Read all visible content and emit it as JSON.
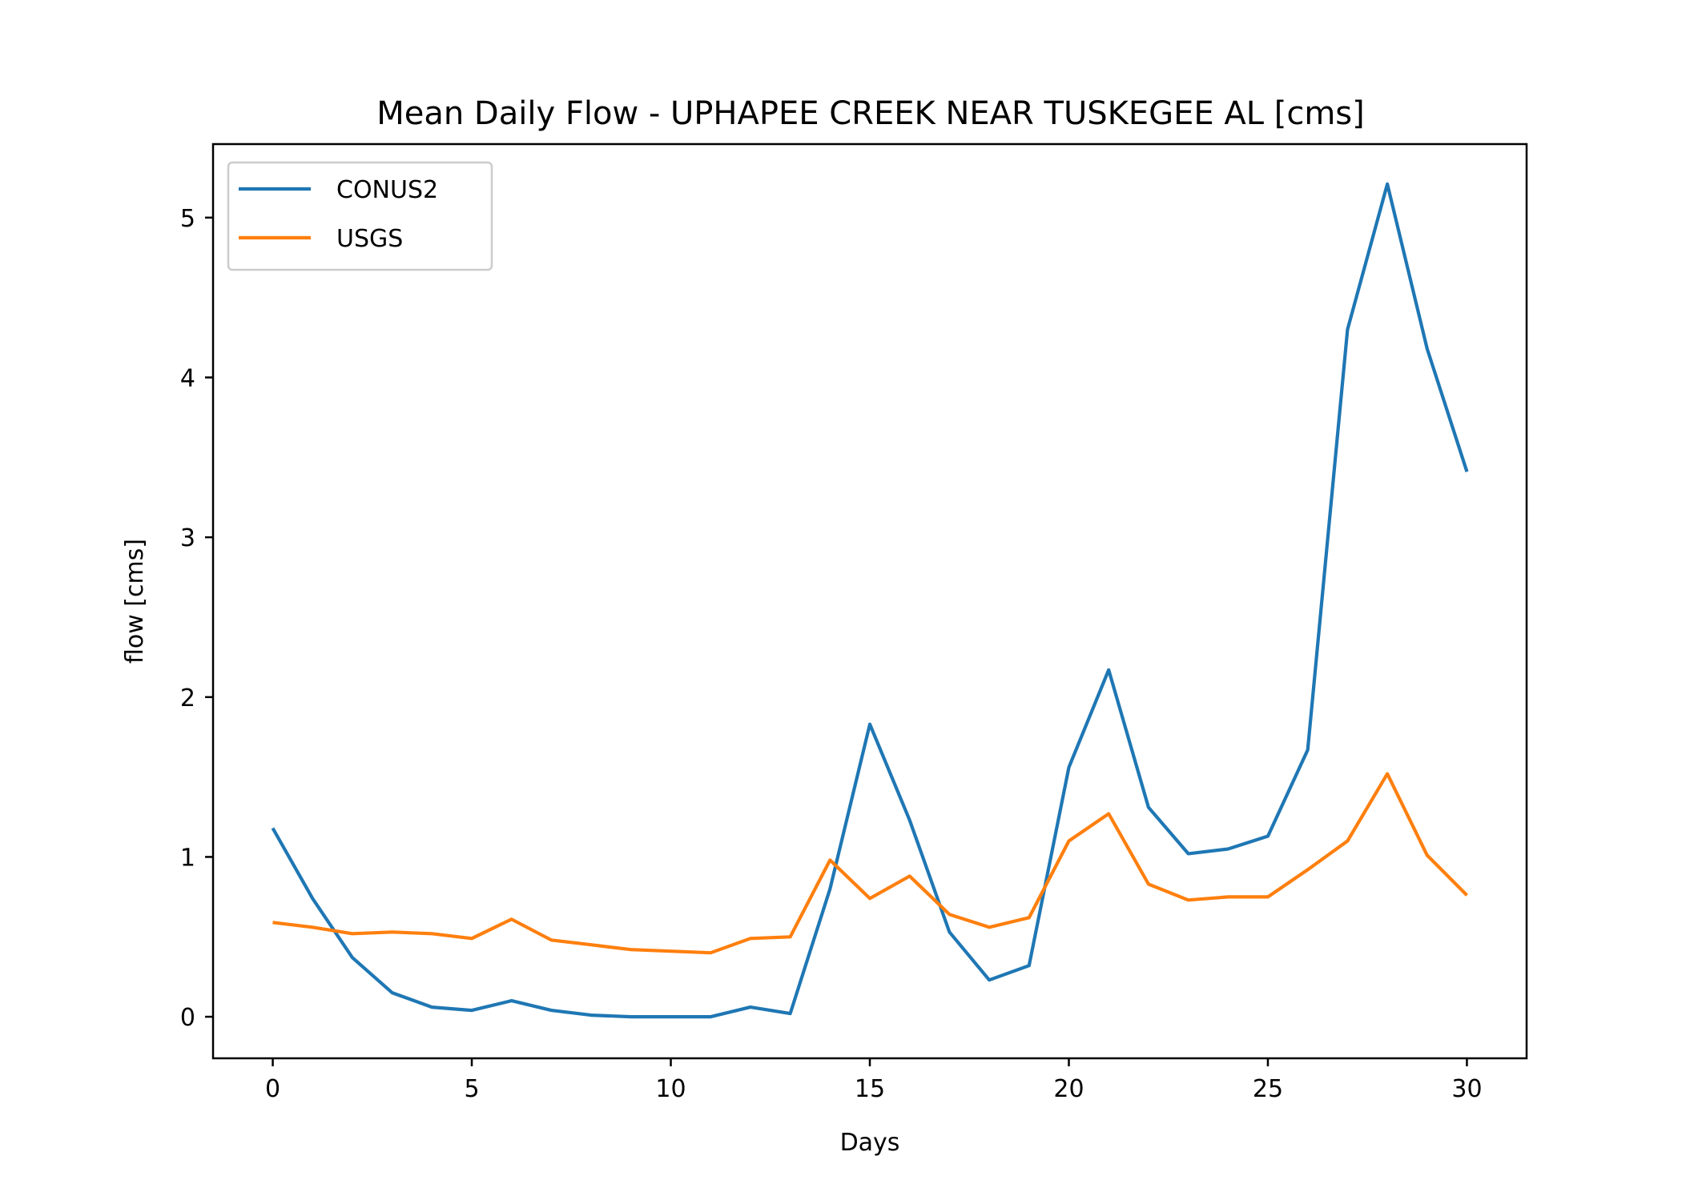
{
  "chart_data": {
    "type": "line",
    "title": "Mean Daily Flow - UPHAPEE CREEK NEAR TUSKEGEE AL [cms]",
    "xlabel": "Days",
    "ylabel": "flow [cms]",
    "xlim": [
      -1.5,
      31.5
    ],
    "ylim": [
      -0.26,
      5.46
    ],
    "xticks": [
      0,
      5,
      10,
      15,
      20,
      25,
      30
    ],
    "xtick_labels": [
      "0",
      "5",
      "10",
      "15",
      "20",
      "25",
      "30"
    ],
    "yticks": [
      0,
      1,
      2,
      3,
      4,
      5
    ],
    "ytick_labels": [
      "0",
      "1",
      "2",
      "3",
      "4",
      "5"
    ],
    "grid": false,
    "legend_position": "upper-left",
    "x": [
      0,
      1,
      2,
      3,
      4,
      5,
      6,
      7,
      8,
      9,
      10,
      11,
      12,
      13,
      14,
      15,
      16,
      17,
      18,
      19,
      20,
      21,
      22,
      23,
      24,
      25,
      26,
      27,
      28,
      29,
      30
    ],
    "series": [
      {
        "name": "CONUS2",
        "color": "#1f77b4",
        "values": [
          1.18,
          0.74,
          0.37,
          0.15,
          0.06,
          0.04,
          0.1,
          0.04,
          0.01,
          0.0,
          0.0,
          0.0,
          0.06,
          0.02,
          0.8,
          1.83,
          1.23,
          0.53,
          0.23,
          0.32,
          1.56,
          2.17,
          1.31,
          1.02,
          1.05,
          1.13,
          1.67,
          4.3,
          5.21,
          4.18,
          3.41
        ]
      },
      {
        "name": "USGS",
        "color": "#ff7f0e",
        "values": [
          0.59,
          0.56,
          0.52,
          0.53,
          0.52,
          0.49,
          0.61,
          0.48,
          0.45,
          0.42,
          0.41,
          0.4,
          0.49,
          0.5,
          0.98,
          0.74,
          0.88,
          0.64,
          0.56,
          0.62,
          1.1,
          1.27,
          0.83,
          0.73,
          0.75,
          0.75,
          0.92,
          1.1,
          1.52,
          1.01,
          0.76
        ]
      }
    ]
  }
}
